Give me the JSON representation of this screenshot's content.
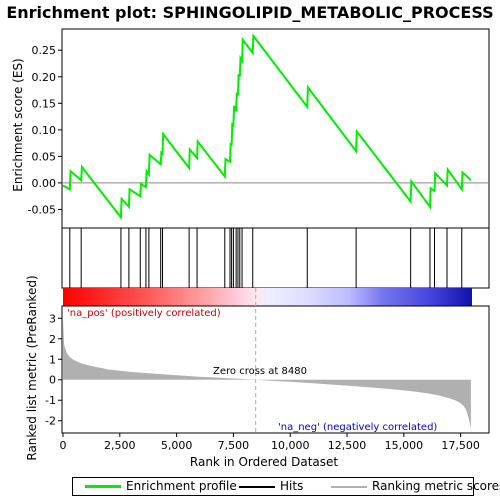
{
  "chart_data": {
    "type": "line",
    "title": "Enrichment plot: SPHINGOLIPID_METABOLIC_PROCESS",
    "xlabel": "Rank in Ordered Dataset",
    "ylabel_top": "Enrichment score (ES)",
    "ylabel_bottom": "Ranked list metric (PreRanked)",
    "xlim": [
      0,
      18000
    ],
    "x_ticks": [
      0,
      2500,
      5000,
      7500,
      10000,
      12500,
      15000,
      17500
    ],
    "x_tick_labels": [
      "0",
      "2,500",
      "5,000",
      "7,500",
      "10,000",
      "12,500",
      "15,000",
      "17,500"
    ],
    "es_ylim": [
      -0.085,
      0.29
    ],
    "es_ticks": [
      -0.05,
      0.0,
      0.05,
      0.1,
      0.15,
      0.2,
      0.25
    ],
    "es_tick_labels": [
      "-0.05",
      "0.00",
      "0.05",
      "0.10",
      "0.15",
      "0.20",
      "0.25"
    ],
    "metric_ylim": [
      -2.6,
      3.6
    ],
    "metric_ticks": [
      -2,
      -1,
      0,
      1,
      2,
      3
    ],
    "metric_tick_labels": [
      "-2",
      "-1",
      "0",
      "1",
      "2",
      "3"
    ],
    "series": [
      {
        "name": "Enrichment profile",
        "color": "#00ee00",
        "x": [
          0,
          300,
          330,
          800,
          830,
          2550,
          2580,
          2900,
          2930,
          3400,
          3430,
          3650,
          3680,
          3780,
          3810,
          4300,
          4330,
          4380,
          4410,
          5550,
          5580,
          5900,
          5930,
          7120,
          7150,
          7350,
          7380,
          7420,
          7450,
          7500,
          7530,
          7620,
          7650,
          7700,
          7730,
          7780,
          7810,
          7880,
          7910,
          8350,
          8380,
          10750,
          10780,
          12900,
          12930,
          15300,
          15330,
          16150,
          16180,
          16350,
          16380,
          16900,
          16930,
          17550,
          17580,
          17950
        ],
        "y": [
          -0.005,
          -0.012,
          0.022,
          0.005,
          0.03,
          -0.065,
          -0.03,
          -0.045,
          -0.012,
          -0.025,
          -0.002,
          -0.008,
          0.022,
          0.016,
          0.053,
          0.035,
          0.057,
          0.055,
          0.092,
          0.028,
          0.063,
          0.047,
          0.078,
          0.012,
          0.045,
          0.04,
          0.075,
          0.07,
          0.11,
          0.108,
          0.145,
          0.135,
          0.17,
          0.165,
          0.205,
          0.2,
          0.235,
          0.23,
          0.27,
          0.245,
          0.277,
          0.143,
          0.18,
          0.06,
          0.097,
          -0.035,
          0.003,
          -0.045,
          -0.01,
          -0.015,
          0.018,
          -0.005,
          0.025,
          -0.012,
          0.02,
          0.005
        ]
      }
    ],
    "hits": [
      300,
      800,
      2550,
      2900,
      3400,
      3650,
      3780,
      4300,
      4380,
      5550,
      5900,
      7120,
      7350,
      7420,
      7500,
      7620,
      7700,
      7780,
      7880,
      8350,
      10750,
      12900,
      15300,
      16150,
      16350,
      16900,
      17550
    ],
    "metric_profile": {
      "x": [
        0,
        50,
        150,
        300,
        500,
        800,
        1200,
        2000,
        3000,
        4000,
        5000,
        6000,
        7000,
        8000,
        8480,
        9000,
        10000,
        11000,
        12000,
        13000,
        14000,
        15000,
        15500,
        16000,
        16500,
        17000,
        17300,
        17500,
        17650,
        17750,
        17850,
        17950
      ],
      "y": [
        3.0,
        1.7,
        1.35,
        1.1,
        0.95,
        0.8,
        0.68,
        0.5,
        0.38,
        0.3,
        0.22,
        0.15,
        0.09,
        0.03,
        0.0,
        -0.04,
        -0.1,
        -0.17,
        -0.25,
        -0.33,
        -0.42,
        -0.52,
        -0.58,
        -0.66,
        -0.76,
        -0.9,
        -1.02,
        -1.15,
        -1.3,
        -1.5,
        -1.85,
        -2.4
      ],
      "color": "#b0b0b0"
    },
    "zero_cross_x": 8480,
    "annotations": {
      "zero_cross": "Zero cross at 8480",
      "pos_label": "'na_pos' (positively correlated)",
      "neg_label": "'na_neg' (negatively correlated)"
    },
    "colors": {
      "es_line": "#00ee00",
      "hit": "#000000",
      "pos_text": "#cc0000",
      "neg_text": "#0000cc",
      "zero_line": "#aaaaaa"
    },
    "legend": {
      "position": "bottom",
      "items": [
        "Enrichment profile",
        "Hits",
        "Ranking metric scores"
      ]
    }
  }
}
